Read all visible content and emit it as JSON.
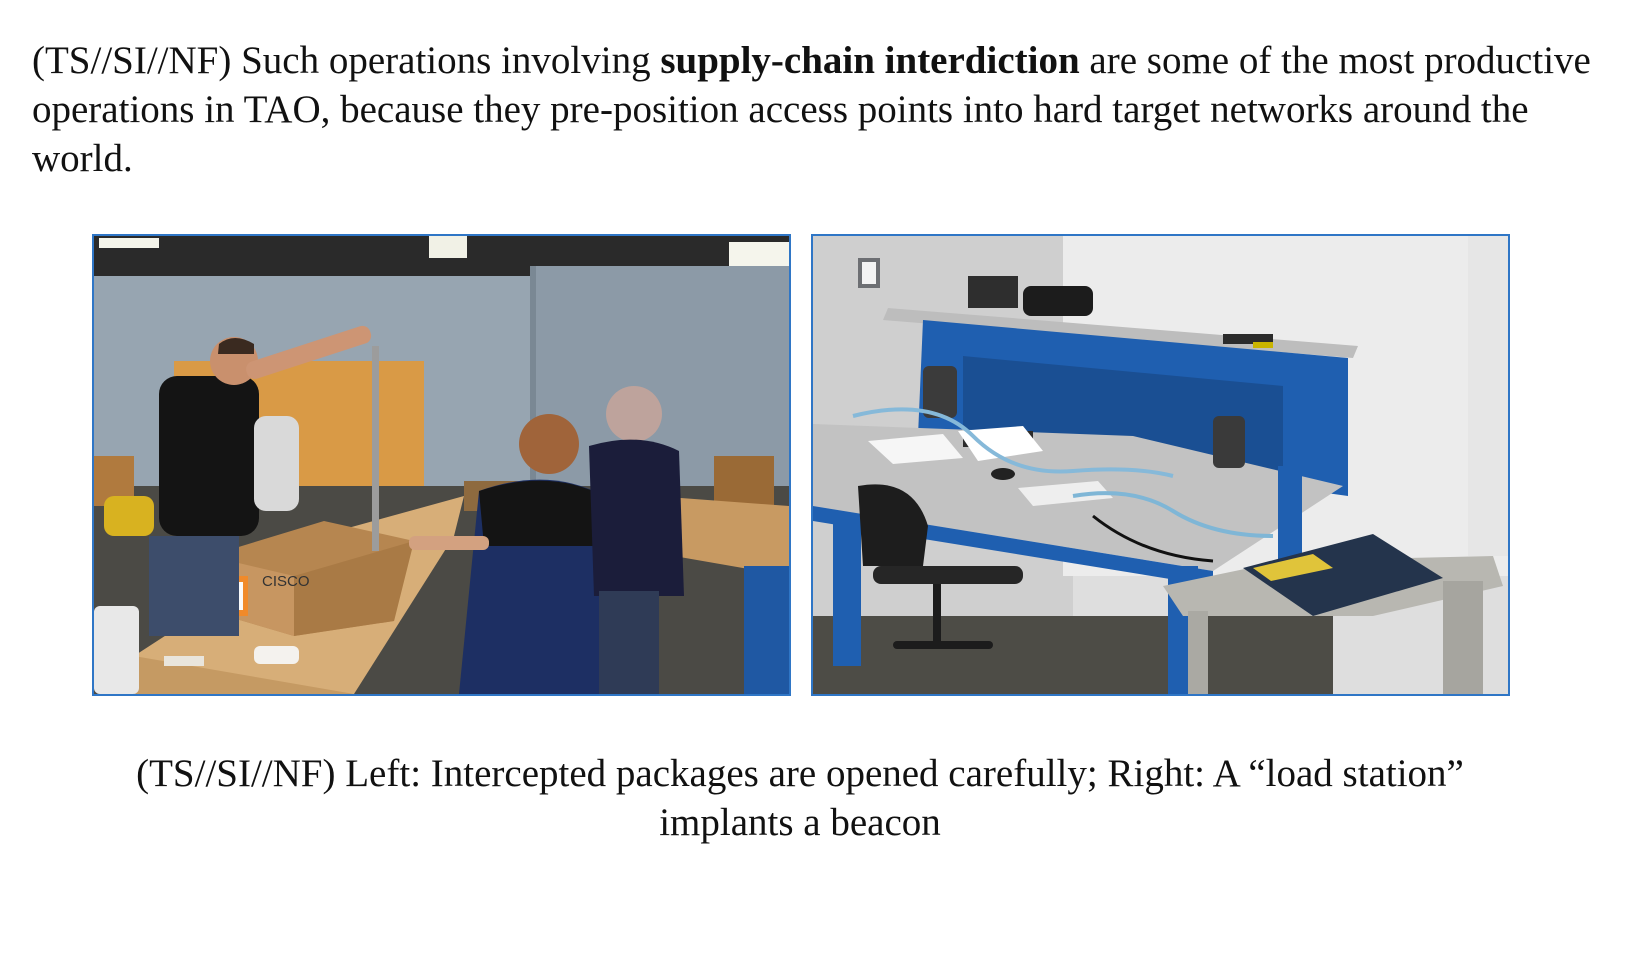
{
  "document": {
    "paragraph": {
      "prefix": "(TS//SI//NF) Such operations involving ",
      "emphasis": "supply-chain interdiction",
      "suffix": " are some of the most productive operations in TAO, because they pre-position access points into hard target networks around the world."
    },
    "figures": {
      "left": {
        "box_logo_text": "CISCO"
      },
      "right": {}
    },
    "caption": {
      "line1": "(TS//SI//NF) Left: Intercepted packages are opened carefully; Right: A “load station”",
      "line2": "implants a beacon"
    }
  },
  "colors": {
    "frame_border": "#2f76c6",
    "text": "#111111",
    "bench_blue": "#1f5fb0"
  }
}
